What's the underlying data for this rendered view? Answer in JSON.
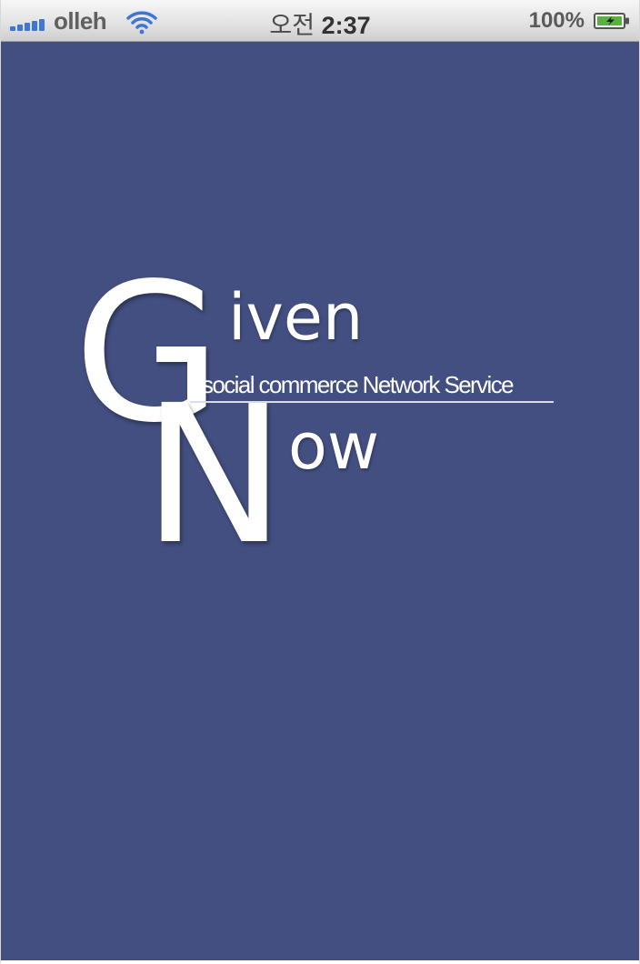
{
  "status_bar": {
    "carrier": "olleh",
    "time_prefix": "오전",
    "time": "2:37",
    "battery_percent": "100%",
    "signal_icon": "signal-bars-icon",
    "wifi_icon": "wifi-icon",
    "battery_icon": "battery-charging-icon",
    "accent_color": "#3f76d4"
  },
  "splash": {
    "background_color": "#424f80",
    "logo": {
      "letter_g": "G",
      "letter_n": "N",
      "word_given_rest": "iven",
      "word_now_rest": "ow",
      "tagline": "social commerce Network Service"
    }
  }
}
